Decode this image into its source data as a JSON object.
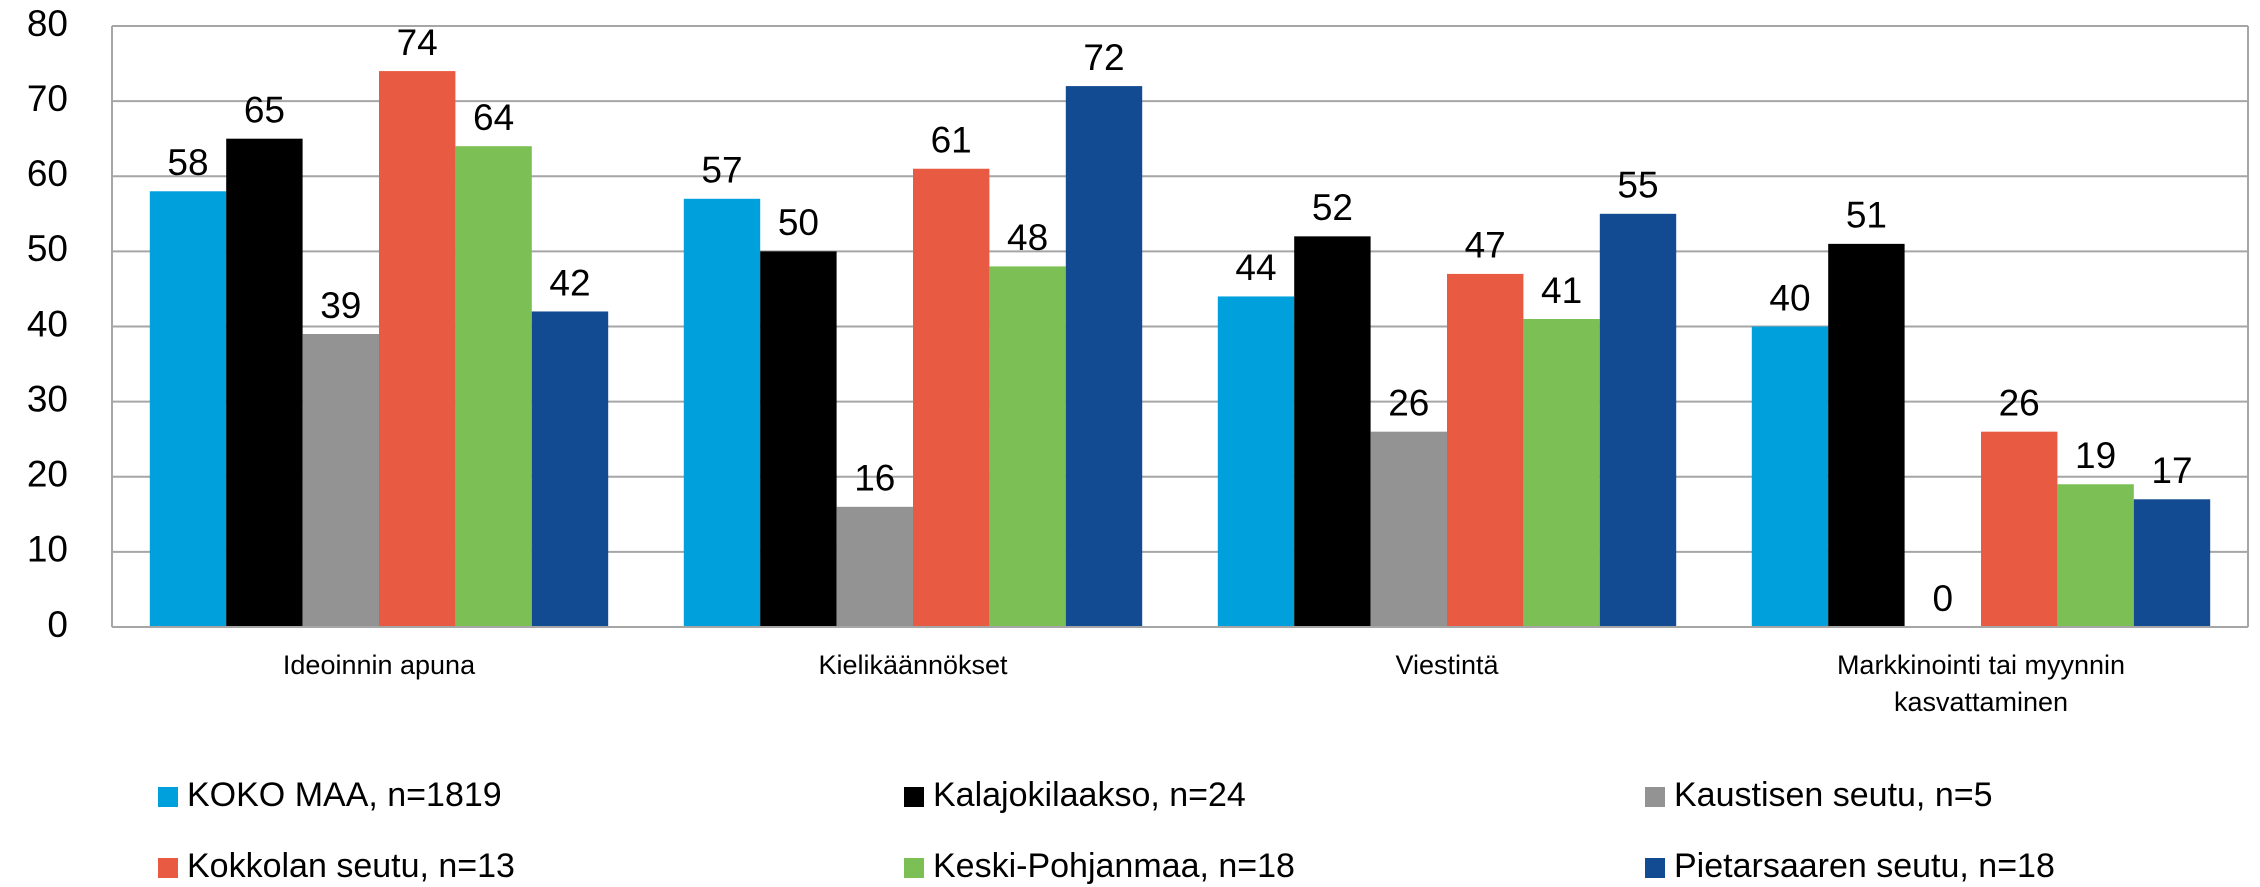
{
  "chart_data": {
    "type": "bar",
    "categories": [
      "Ideoinnin apuna",
      "Kielikäännökset",
      "Viestintä",
      "Markkinointi tai myynnin kasvattaminen"
    ],
    "series": [
      {
        "name": "KOKO MAA, n=1819",
        "color": "#00a0dc",
        "values": [
          58,
          57,
          44,
          40
        ]
      },
      {
        "name": "Kalajokilaakso, n=24",
        "color": "#000000",
        "values": [
          65,
          50,
          52,
          51
        ]
      },
      {
        "name": "Kaustisen seutu, n=5",
        "color": "#939393",
        "values": [
          39,
          16,
          26,
          0
        ]
      },
      {
        "name": "Kokkolan seutu, n=13",
        "color": "#e85a41",
        "values": [
          74,
          61,
          47,
          26
        ]
      },
      {
        "name": "Keski-Pohjanmaa, n=18",
        "color": "#7cbf55",
        "values": [
          64,
          48,
          41,
          19
        ]
      },
      {
        "name": "Pietarsaaren seutu, n=18",
        "color": "#124b91",
        "values": [
          42,
          72,
          55,
          17
        ]
      }
    ],
    "ylim": [
      0,
      80
    ],
    "yticks": [
      0,
      10,
      20,
      30,
      40,
      50,
      60,
      70,
      80
    ],
    "grid": true,
    "legend": "bottom"
  }
}
